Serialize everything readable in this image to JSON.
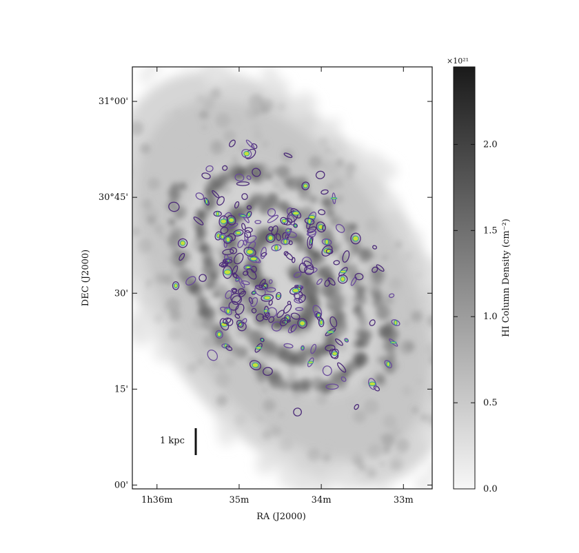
{
  "chart_data": {
    "type": "heatmap",
    "title": "",
    "xlabel": "RA (J2000)",
    "ylabel": "DEC (J2000)",
    "x_ticks": [
      {
        "label": "1h36m",
        "value": 96.0
      },
      {
        "label": "35m",
        "value": 95.0
      },
      {
        "label": "34m",
        "value": 94.0
      },
      {
        "label": "33m",
        "value": 93.0
      }
    ],
    "y_ticks": [
      {
        "label": "31°00'",
        "value": 31.0
      },
      {
        "label": "30°45'",
        "value": 30.75
      },
      {
        "label": "30'",
        "value": 30.5
      },
      {
        "label": "15'",
        "value": 30.25
      },
      {
        "label": "00'",
        "value": 30.0
      }
    ],
    "xlim": [
      96.3,
      92.65
    ],
    "ylim": [
      29.99,
      31.09
    ],
    "colorbar": {
      "label": "HI Column Density (cm⁻²)",
      "multiplier": "×10²¹",
      "range": [
        0.0,
        2.45
      ],
      "ticks": [
        "0.0",
        "0.5",
        "1.0",
        "1.5",
        "2.0"
      ],
      "colormap": "grayscale"
    },
    "scale_bar": {
      "label": "1 kpc"
    },
    "contour_colors": [
      "#4b2a78",
      "#6a4c9c",
      "#2aa0a0",
      "#c6e03a"
    ],
    "image_colors": {
      "low": "#f2f2f2",
      "high": "#1a1a1a"
    }
  }
}
